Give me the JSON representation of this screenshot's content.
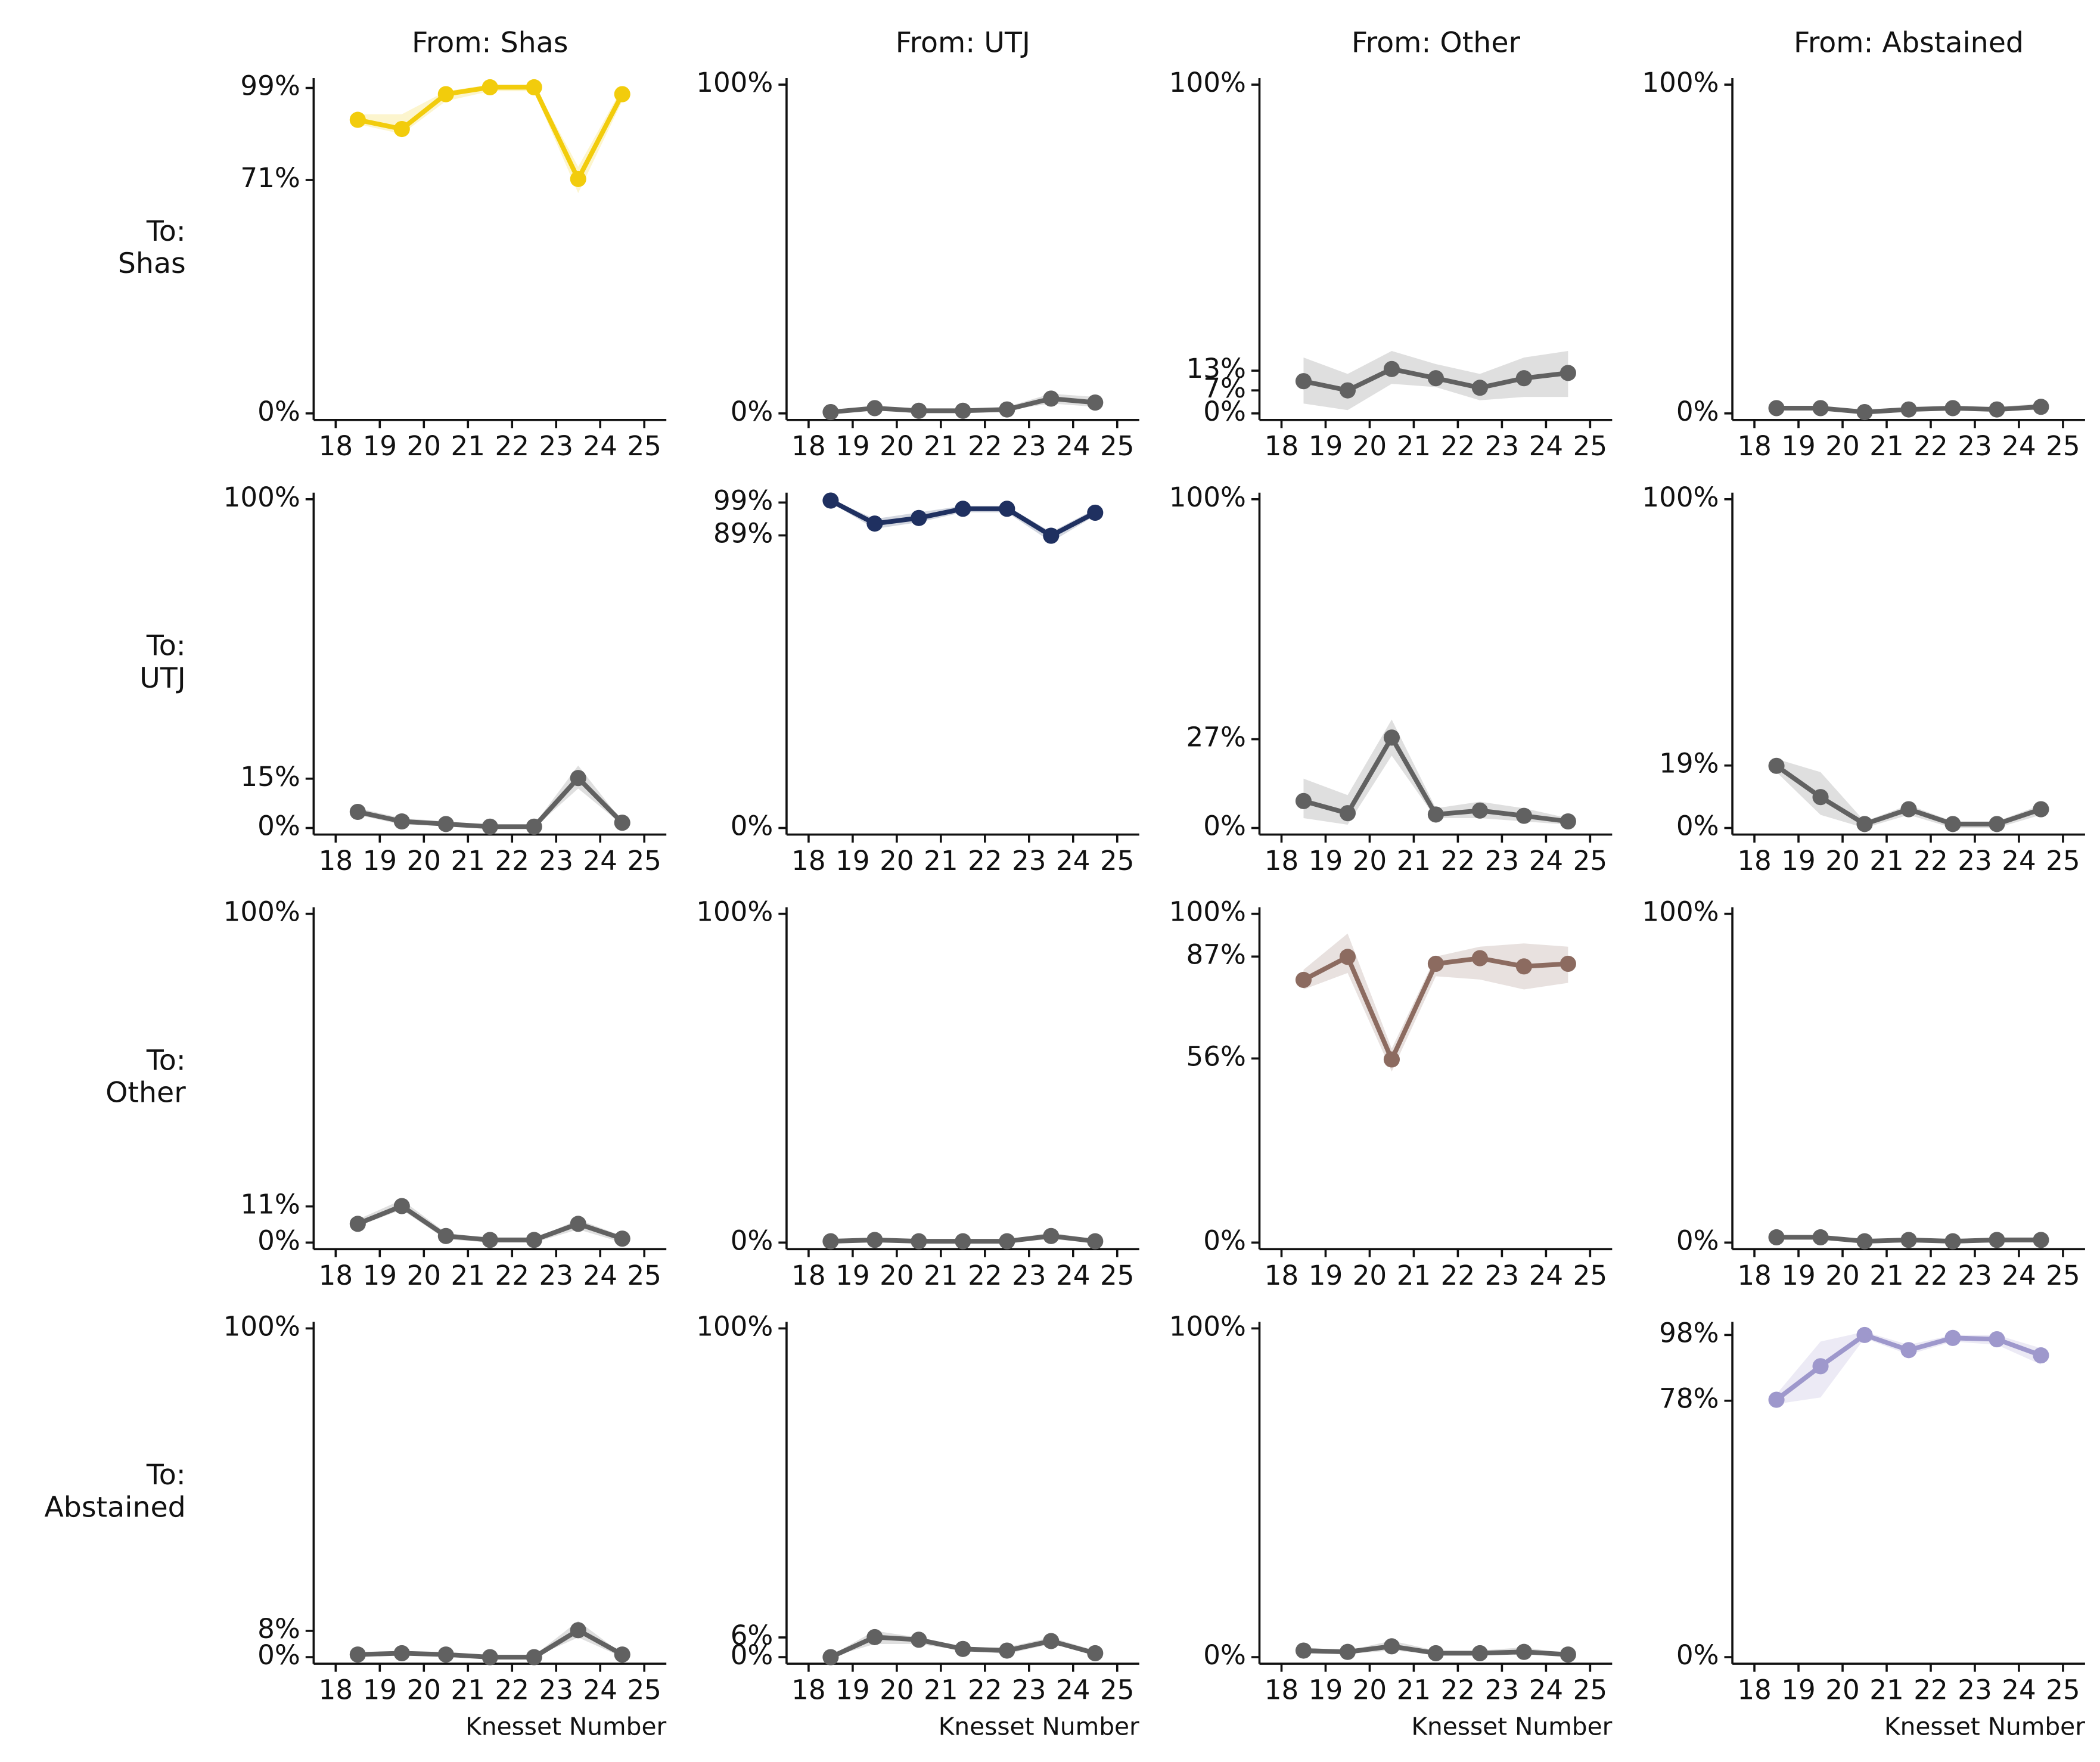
{
  "chart_data": [
    {
      "type": "line",
      "title": "From: Shas",
      "ylabel": [
        "To:",
        "Shas"
      ],
      "x": [
        18.5,
        19.5,
        20.5,
        21.5,
        22.5,
        23.5,
        24.5
      ],
      "xlim": [
        17.5,
        25.5
      ],
      "xticks": [
        18,
        19,
        20,
        21,
        22,
        23,
        24,
        25
      ],
      "ylim": [
        -2,
        102
      ],
      "yticks": [
        {
          "value": 0,
          "label": "0%"
        },
        {
          "value": 71,
          "label": "71%"
        },
        {
          "value": 99,
          "label": "99%"
        }
      ],
      "series": [
        {
          "color": "#f2cc0c",
          "values": [
            89.3,
            86.5,
            97.1,
            99.2,
            99.2,
            71.3,
            97.1
          ],
          "lower": [
            88,
            85,
            95,
            98,
            98,
            67,
            95
          ],
          "upper": [
            91,
            91,
            98,
            100,
            100,
            75,
            99
          ]
        }
      ]
    },
    {
      "type": "line",
      "title": "From: UTJ",
      "x": [
        18.5,
        19.5,
        20.5,
        21.5,
        22.5,
        23.5,
        24.5
      ],
      "xlim": [
        17.5,
        25.5
      ],
      "xticks": [
        18,
        19,
        20,
        21,
        22,
        23,
        24,
        25
      ],
      "ylim": [
        -2,
        102
      ],
      "yticks": [
        {
          "value": 0,
          "label": "0%"
        },
        {
          "value": 100,
          "label": "100%"
        }
      ],
      "series": [
        {
          "color": "#616161",
          "values": [
            0.4,
            1.6,
            0.8,
            0.8,
            1.2,
            4.5,
            3.3
          ],
          "lower": [
            0,
            1,
            0,
            0,
            1,
            3,
            2
          ],
          "upper": [
            1,
            2,
            1,
            1,
            2,
            6,
            5
          ]
        }
      ]
    },
    {
      "type": "line",
      "title": "From: Other",
      "x": [
        18.5,
        19.5,
        20.5,
        21.5,
        22.5,
        23.5,
        24.5
      ],
      "xlim": [
        17.5,
        25.5
      ],
      "xticks": [
        18,
        19,
        20,
        21,
        22,
        23,
        24,
        25
      ],
      "ylim": [
        -2,
        102
      ],
      "yticks": [
        {
          "value": 0,
          "label": "0%"
        },
        {
          "value": 7,
          "label": "7%"
        },
        {
          "value": 13,
          "label": "13%"
        },
        {
          "value": 100,
          "label": "100%"
        }
      ],
      "series": [
        {
          "color": "#616161",
          "values": [
            9.8,
            7.0,
            13.5,
            10.7,
            7.8,
            10.7,
            12.3
          ],
          "lower": [
            3,
            1,
            9,
            8,
            4,
            5,
            5
          ],
          "upper": [
            17,
            12,
            19,
            15,
            12,
            17,
            19
          ]
        }
      ]
    },
    {
      "type": "line",
      "title": "From: Abstained",
      "x": [
        18.5,
        19.5,
        20.5,
        21.5,
        22.5,
        23.5,
        24.5
      ],
      "xlim": [
        17.5,
        25.5
      ],
      "xticks": [
        18,
        19,
        20,
        21,
        22,
        23,
        24,
        25
      ],
      "ylim": [
        -2,
        102
      ],
      "yticks": [
        {
          "value": 0,
          "label": "0%"
        },
        {
          "value": 100,
          "label": "100%"
        }
      ],
      "series": [
        {
          "color": "#616161",
          "values": [
            1.6,
            1.6,
            0.4,
            1.2,
            1.6,
            1.2,
            2.0
          ],
          "lower": [
            1,
            1,
            0,
            1,
            1,
            1,
            1
          ],
          "upper": [
            2,
            2,
            1,
            2,
            2,
            2,
            3
          ]
        }
      ]
    },
    {
      "type": "line",
      "ylabel": [
        "To:",
        "UTJ"
      ],
      "x": [
        18.5,
        19.5,
        20.5,
        21.5,
        22.5,
        23.5,
        24.5
      ],
      "xlim": [
        17.5,
        25.5
      ],
      "xticks": [
        18,
        19,
        20,
        21,
        22,
        23,
        24,
        25
      ],
      "ylim": [
        -2,
        102
      ],
      "yticks": [
        {
          "value": 0,
          "label": "0%"
        },
        {
          "value": 15,
          "label": "15%"
        },
        {
          "value": 100,
          "label": "100%"
        }
      ],
      "series": [
        {
          "color": "#616161",
          "values": [
            4.9,
            2.0,
            1.2,
            0.4,
            0.4,
            15.2,
            1.6
          ],
          "lower": [
            4,
            1,
            1,
            0,
            0,
            12,
            1
          ],
          "upper": [
            6,
            3,
            2,
            1,
            1,
            19,
            2
          ]
        }
      ]
    },
    {
      "type": "line",
      "x": [
        18.5,
        19.5,
        20.5,
        21.5,
        22.5,
        23.5,
        24.5
      ],
      "xlim": [
        17.5,
        25.5
      ],
      "xticks": [
        18,
        19,
        20,
        21,
        22,
        23,
        24,
        25
      ],
      "ylim": [
        -2,
        102
      ],
      "yticks": [
        {
          "value": 0,
          "label": "0%"
        },
        {
          "value": 89,
          "label": "89%"
        },
        {
          "value": 99,
          "label": "99%"
        }
      ],
      "series": [
        {
          "color": "#1f3060",
          "values": [
            99.6,
            92.6,
            94.3,
            97.1,
            97.1,
            88.9,
            95.9
          ],
          "lower": [
            99,
            91,
            93,
            96,
            96,
            87,
            95
          ],
          "upper": [
            100,
            94,
            96,
            98,
            98,
            90,
            97
          ]
        }
      ]
    },
    {
      "type": "line",
      "x": [
        18.5,
        19.5,
        20.5,
        21.5,
        22.5,
        23.5,
        24.5
      ],
      "xlim": [
        17.5,
        25.5
      ],
      "xticks": [
        18,
        19,
        20,
        21,
        22,
        23,
        24,
        25
      ],
      "ylim": [
        -2,
        102
      ],
      "yticks": [
        {
          "value": 0,
          "label": "0%"
        },
        {
          "value": 27,
          "label": "27%"
        },
        {
          "value": 100,
          "label": "100%"
        }
      ],
      "series": [
        {
          "color": "#616161",
          "values": [
            8.2,
            4.5,
            27.5,
            4.1,
            5.3,
            3.7,
            2.0
          ],
          "lower": [
            3,
            1,
            22,
            3,
            3,
            2,
            1
          ],
          "upper": [
            15,
            10,
            33,
            6,
            8,
            6,
            3
          ]
        }
      ]
    },
    {
      "type": "line",
      "x": [
        18.5,
        19.5,
        20.5,
        21.5,
        22.5,
        23.5,
        24.5
      ],
      "xlim": [
        17.5,
        25.5
      ],
      "xticks": [
        18,
        19,
        20,
        21,
        22,
        23,
        24,
        25
      ],
      "ylim": [
        -2,
        102
      ],
      "yticks": [
        {
          "value": 0,
          "label": "0%"
        },
        {
          "value": 19,
          "label": "19%"
        },
        {
          "value": 100,
          "label": "100%"
        }
      ],
      "series": [
        {
          "color": "#616161",
          "values": [
            18.9,
            9.4,
            1.2,
            5.7,
            1.2,
            1.2,
            5.7
          ],
          "lower": [
            17,
            4,
            0,
            4,
            0,
            0,
            4
          ],
          "upper": [
            21,
            17,
            2,
            7,
            2,
            2,
            7
          ]
        }
      ]
    },
    {
      "type": "line",
      "ylabel": [
        "To:",
        "Other"
      ],
      "x": [
        18.5,
        19.5,
        20.5,
        21.5,
        22.5,
        23.5,
        24.5
      ],
      "xlim": [
        17.5,
        25.5
      ],
      "xticks": [
        18,
        19,
        20,
        21,
        22,
        23,
        24,
        25
      ],
      "ylim": [
        -2,
        102
      ],
      "yticks": [
        {
          "value": 0,
          "label": "0%"
        },
        {
          "value": 11,
          "label": "11%"
        },
        {
          "value": 100,
          "label": "100%"
        }
      ],
      "series": [
        {
          "color": "#616161",
          "values": [
            5.7,
            11.1,
            2.0,
            0.8,
            0.8,
            5.7,
            1.2
          ],
          "lower": [
            5,
            10,
            1,
            0,
            0,
            4,
            0
          ],
          "upper": [
            7,
            13,
            3,
            1,
            1,
            7,
            2
          ]
        }
      ]
    },
    {
      "type": "line",
      "x": [
        18.5,
        19.5,
        20.5,
        21.5,
        22.5,
        23.5,
        24.5
      ],
      "xlim": [
        17.5,
        25.5
      ],
      "xticks": [
        18,
        19,
        20,
        21,
        22,
        23,
        24,
        25
      ],
      "ylim": [
        -2,
        102
      ],
      "yticks": [
        {
          "value": 0,
          "label": "0%"
        },
        {
          "value": 100,
          "label": "100%"
        }
      ],
      "series": [
        {
          "color": "#616161",
          "values": [
            0.4,
            0.8,
            0.4,
            0.4,
            0.4,
            2.0,
            0.4
          ],
          "lower": [
            0,
            0,
            0,
            0,
            0,
            1,
            0
          ],
          "upper": [
            1,
            1,
            1,
            1,
            1,
            3,
            1
          ]
        }
      ]
    },
    {
      "type": "line",
      "x": [
        18.5,
        19.5,
        20.5,
        21.5,
        22.5,
        23.5,
        24.5
      ],
      "xlim": [
        17.5,
        25.5
      ],
      "xticks": [
        18,
        19,
        20,
        21,
        22,
        23,
        24,
        25
      ],
      "ylim": [
        -2,
        102
      ],
      "yticks": [
        {
          "value": 0,
          "label": "0%"
        },
        {
          "value": 56,
          "label": "56%"
        },
        {
          "value": 87,
          "label": "87%"
        },
        {
          "value": 100,
          "label": "100%"
        }
      ],
      "series": [
        {
          "color": "#8c6b60",
          "values": [
            79.9,
            86.9,
            55.7,
            84.8,
            86.5,
            84.0,
            84.8
          ],
          "lower": [
            77,
            82,
            52,
            81,
            80,
            77,
            79
          ],
          "upper": [
            83,
            94,
            59,
            87,
            90,
            91,
            90
          ]
        }
      ]
    },
    {
      "type": "line",
      "x": [
        18.5,
        19.5,
        20.5,
        21.5,
        22.5,
        23.5,
        24.5
      ],
      "xlim": [
        17.5,
        25.5
      ],
      "xticks": [
        18,
        19,
        20,
        21,
        22,
        23,
        24,
        25
      ],
      "ylim": [
        -2,
        102
      ],
      "yticks": [
        {
          "value": 0,
          "label": "0%"
        },
        {
          "value": 100,
          "label": "100%"
        }
      ],
      "series": [
        {
          "color": "#616161",
          "values": [
            1.6,
            1.6,
            0.4,
            0.8,
            0.4,
            0.8,
            0.8
          ],
          "lower": [
            1,
            1,
            0,
            0,
            0,
            0,
            0
          ],
          "upper": [
            2,
            2,
            1,
            1,
            1,
            1,
            1
          ]
        }
      ]
    },
    {
      "type": "line",
      "ylabel": [
        "To:",
        "Abstained"
      ],
      "xlabel": "Knesset Number",
      "x": [
        18.5,
        19.5,
        20.5,
        21.5,
        22.5,
        23.5,
        24.5
      ],
      "xlim": [
        17.5,
        25.5
      ],
      "xticks": [
        18,
        19,
        20,
        21,
        22,
        23,
        24,
        25
      ],
      "ylim": [
        -2,
        102
      ],
      "yticks": [
        {
          "value": 0,
          "label": "0%"
        },
        {
          "value": 8,
          "label": "8%"
        },
        {
          "value": 100,
          "label": "100%"
        }
      ],
      "series": [
        {
          "color": "#616161",
          "values": [
            0.8,
            1.2,
            0.8,
            0,
            0,
            8.2,
            0.8
          ],
          "lower": [
            0,
            1,
            0,
            0,
            0,
            6,
            0
          ],
          "upper": [
            1,
            2,
            1,
            0.5,
            0.5,
            11,
            1
          ]
        }
      ]
    },
    {
      "type": "line",
      "xlabel": "Knesset Number",
      "x": [
        18.5,
        19.5,
        20.5,
        21.5,
        22.5,
        23.5,
        24.5
      ],
      "xlim": [
        17.5,
        25.5
      ],
      "xticks": [
        18,
        19,
        20,
        21,
        22,
        23,
        24,
        25
      ],
      "ylim": [
        -2,
        102
      ],
      "yticks": [
        {
          "value": 0,
          "label": "0%"
        },
        {
          "value": 6,
          "label": "6%"
        },
        {
          "value": 100,
          "label": "100%"
        }
      ],
      "series": [
        {
          "color": "#616161",
          "values": [
            0,
            6.1,
            5.3,
            2.5,
            2.0,
            4.9,
            1.2
          ],
          "lower": [
            0,
            4,
            4,
            2,
            1,
            4,
            1
          ],
          "upper": [
            0.5,
            8,
            6,
            3,
            3,
            6,
            2
          ]
        }
      ]
    },
    {
      "type": "line",
      "xlabel": "Knesset Number",
      "x": [
        18.5,
        19.5,
        20.5,
        21.5,
        22.5,
        23.5,
        24.5
      ],
      "xlim": [
        17.5,
        25.5
      ],
      "xticks": [
        18,
        19,
        20,
        21,
        22,
        23,
        24,
        25
      ],
      "ylim": [
        -2,
        102
      ],
      "yticks": [
        {
          "value": 0,
          "label": "0%"
        },
        {
          "value": 100,
          "label": "100%"
        }
      ],
      "series": [
        {
          "color": "#616161",
          "values": [
            2.0,
            1.6,
            3.3,
            1.2,
            1.2,
            1.6,
            0.8
          ],
          "lower": [
            1,
            1,
            2,
            1,
            1,
            1,
            0
          ],
          "upper": [
            3,
            2,
            5,
            2,
            2,
            3,
            1
          ]
        }
      ]
    },
    {
      "type": "line",
      "xlabel": "Knesset Number",
      "x": [
        18.5,
        19.5,
        20.5,
        21.5,
        22.5,
        23.5,
        24.5
      ],
      "xlim": [
        17.5,
        25.5
      ],
      "xticks": [
        18,
        19,
        20,
        21,
        22,
        23,
        24,
        25
      ],
      "ylim": [
        -2,
        102
      ],
      "yticks": [
        {
          "value": 0,
          "label": "0%"
        },
        {
          "value": 78,
          "label": "78%"
        },
        {
          "value": 98,
          "label": "98%"
        }
      ],
      "series": [
        {
          "color": "#9e98cc",
          "values": [
            78.3,
            88.5,
            98.0,
            93.4,
            97.1,
            96.7,
            91.8
          ],
          "lower": [
            77,
            79,
            97,
            92,
            96,
            95,
            89
          ],
          "upper": [
            80,
            96,
            99,
            95,
            98,
            98,
            94
          ]
        }
      ]
    }
  ]
}
